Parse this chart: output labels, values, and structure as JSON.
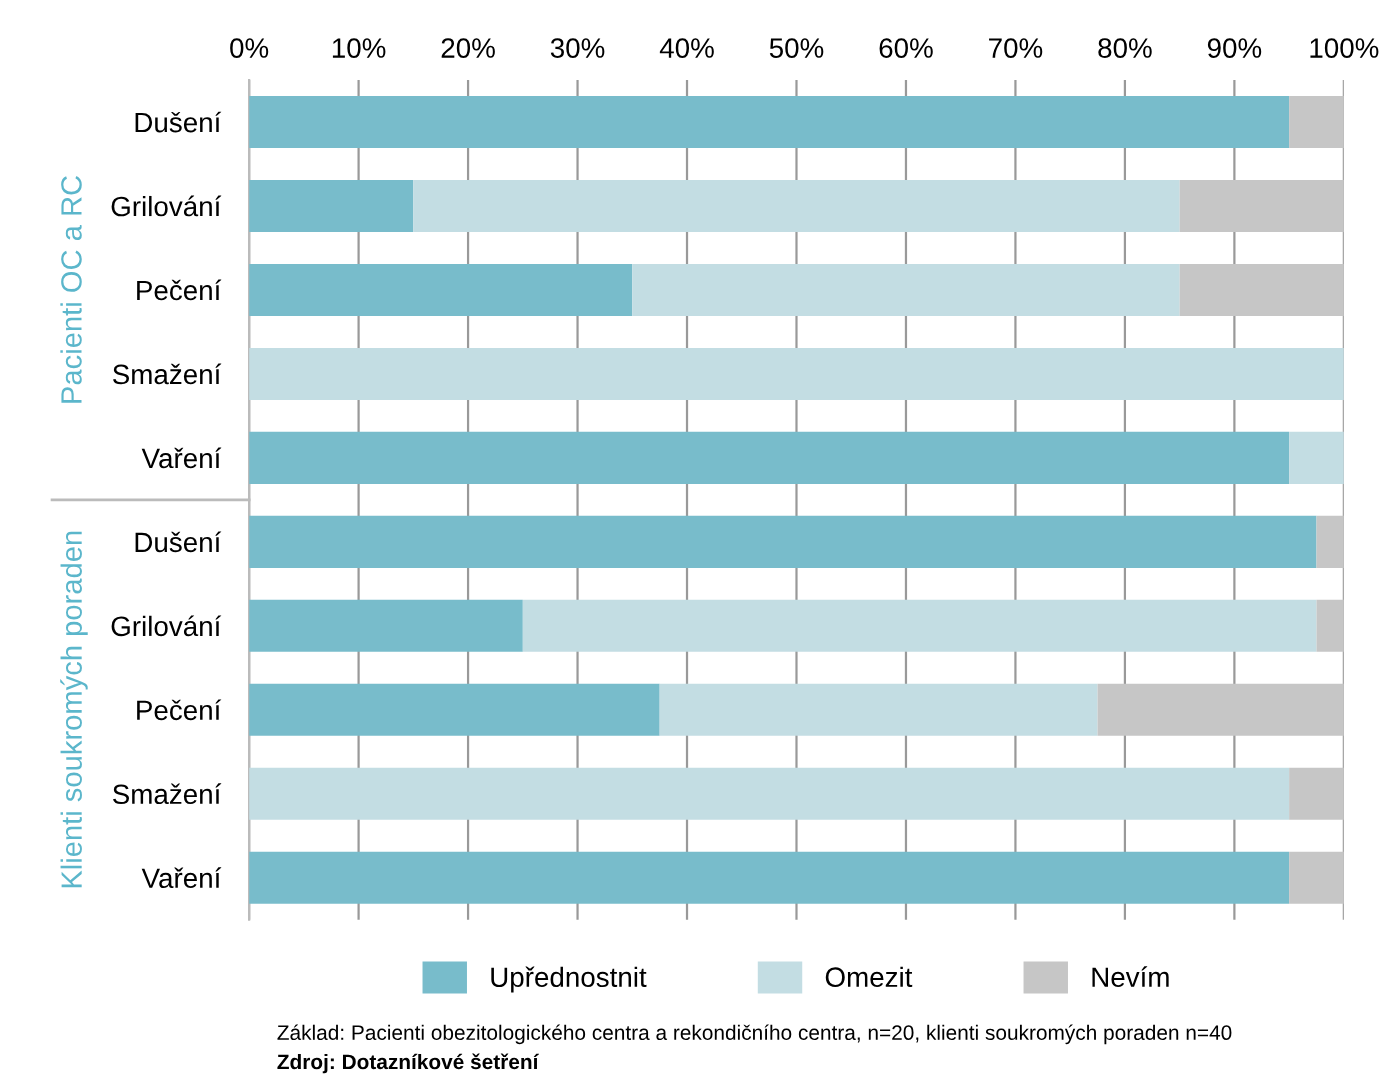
{
  "chart_data": {
    "type": "bar",
    "orientation": "horizontal",
    "stacked": true,
    "categories": [
      "Dušení",
      "Grilování",
      "Pečení",
      "Smažení",
      "Vaření",
      "Dušení",
      "Grilování",
      "Pečení",
      "Smažení",
      "Vaření"
    ],
    "series": [
      {
        "name": "Upřednostnit",
        "color": "#78bccb",
        "values": [
          95,
          15,
          35,
          0,
          95,
          97.5,
          25,
          37.5,
          0,
          95
        ]
      },
      {
        "name": "Omezit",
        "color": "#c3dde3",
        "values": [
          0,
          70,
          50,
          100,
          5,
          0,
          72.5,
          40,
          95,
          0
        ]
      },
      {
        "name": "Nevím",
        "color": "#c6c6c6",
        "values": [
          5,
          15,
          15,
          0,
          0,
          2.5,
          2.5,
          22.5,
          5,
          5
        ]
      }
    ],
    "xlim": [
      0,
      100
    ],
    "xticks": [
      {
        "value": 0,
        "label": "0%"
      },
      {
        "value": 10,
        "label": "10%"
      },
      {
        "value": 20,
        "label": "20%"
      },
      {
        "value": 30,
        "label": "30%"
      },
      {
        "value": 40,
        "label": "40%"
      },
      {
        "value": 50,
        "label": "50%"
      },
      {
        "value": 60,
        "label": "60%"
      },
      {
        "value": 70,
        "label": "70%"
      },
      {
        "value": 80,
        "label": "80%"
      },
      {
        "value": 90,
        "label": "90%"
      },
      {
        "value": 100,
        "label": "100%"
      }
    ],
    "grid": "x",
    "legend": "bottom",
    "annotations": [
      "Pacienti OC a RC",
      "Klienti soukromých poraden",
      "Základ: Pacienti obezitologického centra a rekondičního centra, n=20, klienti soukromých poraden n=40",
      "Zdroj: Dotazníkové šetření"
    ]
  }
}
